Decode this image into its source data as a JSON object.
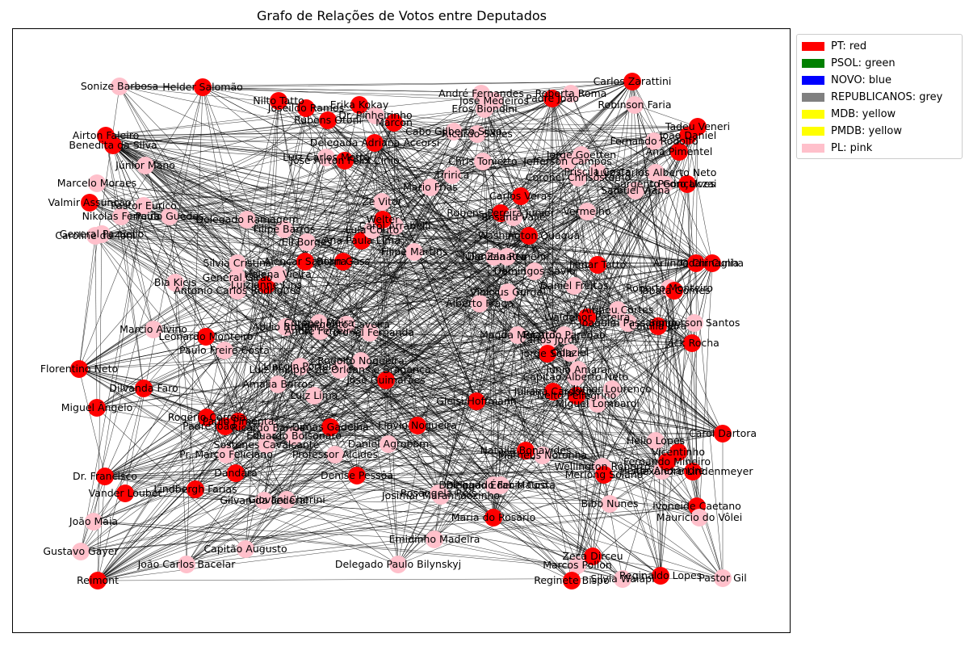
{
  "title": "Grafo de Relações de Votos entre Deputados",
  "colors": {
    "PT": "#ff0000",
    "PSOL": "#008000",
    "NOVO": "#0000ff",
    "REPUBLICANOS": "#808080",
    "MDB": "#ffff00",
    "PMDB": "#ffff00",
    "PL": "#ffc0cb"
  },
  "legend": [
    {
      "label": "PT: red",
      "color": "#ff0000"
    },
    {
      "label": "PSOL: green",
      "color": "#008000"
    },
    {
      "label": "NOVO: blue",
      "color": "#0000ff"
    },
    {
      "label": "REPUBLICANOS: grey",
      "color": "#808080"
    },
    {
      "label": "MDB: yellow",
      "color": "#ffff00"
    },
    {
      "label": "PMDB: yellow",
      "color": "#ffff00"
    },
    {
      "label": "PL: pink",
      "color": "#ffc0cb"
    }
  ],
  "nodes": [
    {
      "name": "Sonize Barbosa",
      "party": "PL"
    },
    {
      "name": "Helder Salomão",
      "party": "PT"
    },
    {
      "name": "Nilto Tatto",
      "party": "PT"
    },
    {
      "name": "Joseildo Ramos",
      "party": "PT"
    },
    {
      "name": "Erika Kokay",
      "party": "PT"
    },
    {
      "name": "Rubens Otoni",
      "party": "PT"
    },
    {
      "name": "Dr. Pinheirinho",
      "party": "PL"
    },
    {
      "name": "Marcon",
      "party": "PT"
    },
    {
      "name": "Airton Faleiro",
      "party": "PT"
    },
    {
      "name": "Benedita da Silva",
      "party": "PT"
    },
    {
      "name": "Júnior Mano",
      "party": "PL"
    },
    {
      "name": "Marcelo Moraes",
      "party": "PL"
    },
    {
      "name": "Valmir Assunção",
      "party": "PT"
    },
    {
      "name": "Nikolas Ferreira",
      "party": "PL"
    },
    {
      "name": "Pastor Eurico",
      "party": "PL"
    },
    {
      "name": "Paulo Guedes",
      "party": "PL"
    },
    {
      "name": "Carlos Veras",
      "party": "PT"
    },
    {
      "name": "Caroline de Toni",
      "party": "PL"
    },
    {
      "name": "General Pazuello",
      "party": "PL"
    },
    {
      "name": "Delegado Ramagem",
      "party": "PL"
    },
    {
      "name": "Bia Kicis",
      "party": "PL"
    },
    {
      "name": "Silvia Cristina",
      "party": "PL"
    },
    {
      "name": "Antonio Carlos Rodrigues",
      "party": "PL"
    },
    {
      "name": "Marcio Alvino",
      "party": "PL"
    },
    {
      "name": "Leonardo Monteiro",
      "party": "PT"
    },
    {
      "name": "Paulo Freire Costa",
      "party": "PL"
    },
    {
      "name": "Florentino Neto",
      "party": "PT"
    },
    {
      "name": "Dilvanda Faro",
      "party": "PT"
    },
    {
      "name": "Miguel Ângelo",
      "party": "PT"
    },
    {
      "name": "Rogério Correia",
      "party": "PT"
    },
    {
      "name": "Padre João",
      "party": "PT"
    },
    {
      "name": "Dr. Francisco",
      "party": "PT"
    },
    {
      "name": "Vander Loubet",
      "party": "PT"
    },
    {
      "name": "Lindbergh Farias",
      "party": "PT"
    },
    {
      "name": "João Maia",
      "party": "PL"
    },
    {
      "name": "Coronel Meira",
      "party": "PL"
    },
    {
      "name": "Gustavo Gayer",
      "party": "PL"
    },
    {
      "name": "Capitão Augusto",
      "party": "PL"
    },
    {
      "name": "João Carlos Bacelar",
      "party": "PL"
    },
    {
      "name": "Reimont",
      "party": "PT"
    },
    {
      "name": "Delegado Paulo Bilynskyj",
      "party": "PL"
    },
    {
      "name": "Emidinho Madeira",
      "party": "PL"
    },
    {
      "name": "Zeca Dirceu",
      "party": "PT"
    },
    {
      "name": "Marcos Pollon",
      "party": "PL"
    },
    {
      "name": "Reginete Bispo",
      "party": "PT"
    },
    {
      "name": "Silvia Waiãpi",
      "party": "PL"
    },
    {
      "name": "Reginaldo Lopes",
      "party": "PT"
    },
    {
      "name": "Pastor Gil",
      "party": "PL"
    },
    {
      "name": "Bibo Nunes",
      "party": "PL"
    },
    {
      "name": "Ivoneide Caetano",
      "party": "PT"
    },
    {
      "name": "Mauricio do Vôlei",
      "party": "PL"
    },
    {
      "name": "Heitor Alexandre",
      "party": "PL"
    },
    {
      "name": "Alexandre Lindenmeyer",
      "party": "PT"
    },
    {
      "name": "Carol Dartora",
      "party": "PT"
    },
    {
      "name": "Helio Lopes",
      "party": "PL"
    },
    {
      "name": "Vicentinho",
      "party": "PT"
    },
    {
      "name": "Fernando Mineiro",
      "party": "PT"
    },
    {
      "name": "Wellington Roberto",
      "party": "PL"
    },
    {
      "name": "Merlong Solano",
      "party": "PT"
    },
    {
      "name": "Natália Bonavides",
      "party": "PT"
    },
    {
      "name": "Matheus Noronha",
      "party": "PL"
    },
    {
      "name": "Delegado Fabio Costa",
      "party": "PL"
    },
    {
      "name": "Delegado Éder Mauro",
      "party": "PL"
    },
    {
      "name": "Rosângela Reis",
      "party": "PL"
    },
    {
      "name": "Josimar Maranhãozinho",
      "party": "PL"
    },
    {
      "name": "Maria do Rosário",
      "party": "PT"
    },
    {
      "name": "Denise Pessôa",
      "party": "PT"
    },
    {
      "name": "Giovani Cherini",
      "party": "PL"
    },
    {
      "name": "Gilvan da Federal",
      "party": "PL"
    },
    {
      "name": "Dandara",
      "party": "PT"
    },
    {
      "name": "Pr. Marco Feliciano",
      "party": "PL"
    },
    {
      "name": "Sóstenes Cavalcante",
      "party": "PL"
    },
    {
      "name": "Eduardo Bolsonaro",
      "party": "PL"
    },
    {
      "name": "Professor Alcides",
      "party": "PL"
    },
    {
      "name": "Daniel Agrobom",
      "party": "PL"
    },
    {
      "name": "Dimas Gadelha",
      "party": "PT"
    },
    {
      "name": "Flávio Nogueira",
      "party": "PT"
    },
    {
      "name": "Gleisi Hoffmann",
      "party": "PT"
    },
    {
      "name": "Paulo Pimenta",
      "party": "PT"
    },
    {
      "name": "Ricardo Barros",
      "party": "PL"
    },
    {
      "name": "Amália Barros",
      "party": "PL"
    },
    {
      "name": "Luiz Lima",
      "party": "PL"
    },
    {
      "name": "Luiz Philippe de Orleans e Bragança",
      "party": "PL"
    },
    {
      "name": "Lincoln Portela",
      "party": "PL"
    },
    {
      "name": "José Guimarães",
      "party": "PT"
    },
    {
      "name": "Rodolfo Nogueira",
      "party": "PL"
    },
    {
      "name": "Abilio Brunini",
      "party": "PL"
    },
    {
      "name": "André Ferreira",
      "party": "PL"
    },
    {
      "name": "Coronel Fernanda",
      "party": "PL"
    },
    {
      "name": "Sargento Caveira",
      "party": "PL"
    },
    {
      "name": "Luizianne Lins",
      "party": "PT"
    },
    {
      "name": "General Girão",
      "party": "PL"
    },
    {
      "name": "Helena Vieira",
      "party": "PL"
    },
    {
      "name": "Alencar Santana",
      "party": "PT"
    },
    {
      "name": "Bohn Gass",
      "party": "PT"
    },
    {
      "name": "Eli Borges",
      "party": "PL"
    },
    {
      "name": "Filipe Barros",
      "party": "PL"
    },
    {
      "name": "Ana Paula Lima",
      "party": "PT"
    },
    {
      "name": "Lula Couto",
      "party": "PL"
    },
    {
      "name": "Carol Arrabelli",
      "party": "PL"
    },
    {
      "name": "Welter",
      "party": "PT"
    },
    {
      "name": "Zé Vitor",
      "party": "PL"
    },
    {
      "name": "Filipe Martins",
      "party": "PL"
    },
    {
      "name": "Delegada Adriana Accorsi",
      "party": "PT"
    },
    {
      "name": "José Airton Félix Cirilo",
      "party": "PT"
    },
    {
      "name": "Luiz Carlos Motta",
      "party": "PL"
    },
    {
      "name": "Cabo Gilberto Silva",
      "party": "PL"
    },
    {
      "name": "Ricardo Salles",
      "party": "PL"
    },
    {
      "name": "Tiririca",
      "party": "PL"
    },
    {
      "name": "Mario Frias",
      "party": "PL"
    },
    {
      "name": "Chris Tonietto",
      "party": "PL"
    },
    {
      "name": "André Fernandes",
      "party": "PL"
    },
    {
      "name": "José Medeiros",
      "party": "PL"
    },
    {
      "name": "Eros Biondini",
      "party": "PL"
    },
    {
      "name": "Roberta Roma",
      "party": "PL"
    },
    {
      "name": "Padre João M",
      "party": "PT"
    },
    {
      "name": "Carlos Zarattini",
      "party": "PT"
    },
    {
      "name": "Robinson Faria",
      "party": "PL"
    },
    {
      "name": "Tadeu Veneri",
      "party": "PT"
    },
    {
      "name": "João Daniel",
      "party": "PT"
    },
    {
      "name": "Fernando Rodolfo",
      "party": "PL"
    },
    {
      "name": "Ana Pimentel",
      "party": "PT"
    },
    {
      "name": "Jorge Goetten",
      "party": "PL"
    },
    {
      "name": "Jefferson Campos",
      "party": "PL"
    },
    {
      "name": "Priscila Costa",
      "party": "PL"
    },
    {
      "name": "Luiz Carlos Alberto Neto",
      "party": "PL"
    },
    {
      "name": "Samuel Viana",
      "party": "PL"
    },
    {
      "name": "Sargento Gonçalves",
      "party": "PL"
    },
    {
      "name": "Pedro Uczai",
      "party": "PT"
    },
    {
      "name": "Coronel Chrisóstomo",
      "party": "PL"
    },
    {
      "name": "Rubens Pereira Júnior",
      "party": "PT"
    },
    {
      "name": "Rosana Valle",
      "party": "PL"
    },
    {
      "name": "Vermelho",
      "party": "PL"
    },
    {
      "name": "Washington Quaquá",
      "party": "PT"
    },
    {
      "name": "Daniela Reinehr",
      "party": "PL"
    },
    {
      "name": "Júlia Zanatta",
      "party": "PL"
    },
    {
      "name": "Domingos Sávio",
      "party": "PL"
    },
    {
      "name": "Jilmar Tatto",
      "party": "PT"
    },
    {
      "name": "Arlindo Chinaglia",
      "party": "PT"
    },
    {
      "name": "Odair Cunha",
      "party": "PT"
    },
    {
      "name": "Daniel Freitas",
      "party": "PL"
    },
    {
      "name": "Roberto Monteiro",
      "party": "PL"
    },
    {
      "name": "Tabata Gomes",
      "party": "PT"
    },
    {
      "name": "Vinicius Gurgel",
      "party": "PL"
    },
    {
      "name": "Alberto Fraga",
      "party": "PL"
    },
    {
      "name": "Altineu Côrtes",
      "party": "PL"
    },
    {
      "name": "Waldenor Pereira",
      "party": "PT"
    },
    {
      "name": "Joaquim Passarinho",
      "party": "PL"
    },
    {
      "name": "Sanderson Santos",
      "party": "PL"
    },
    {
      "name": "Camila Jara",
      "party": "PT"
    },
    {
      "name": "Jack Rocha",
      "party": "PT"
    },
    {
      "name": "Magda Mofatto",
      "party": "PL"
    },
    {
      "name": "Ricardo Paredão",
      "party": "PL"
    },
    {
      "name": "Carlos Jordy",
      "party": "PL"
    },
    {
      "name": "Jorge Solla",
      "party": "PT"
    },
    {
      "name": "Odaziel",
      "party": "PL"
    },
    {
      "name": "Júnio Amaral",
      "party": "PL"
    },
    {
      "name": "Capitão Alberto Neto",
      "party": "PL"
    },
    {
      "name": "Juliana Cardoso",
      "party": "PT"
    },
    {
      "name": "Junior Lourenço",
      "party": "PL"
    },
    {
      "name": "Nelto Pellegrino",
      "party": "PT"
    },
    {
      "name": "Miguel Lombardi",
      "party": "PL"
    }
  ]
}
